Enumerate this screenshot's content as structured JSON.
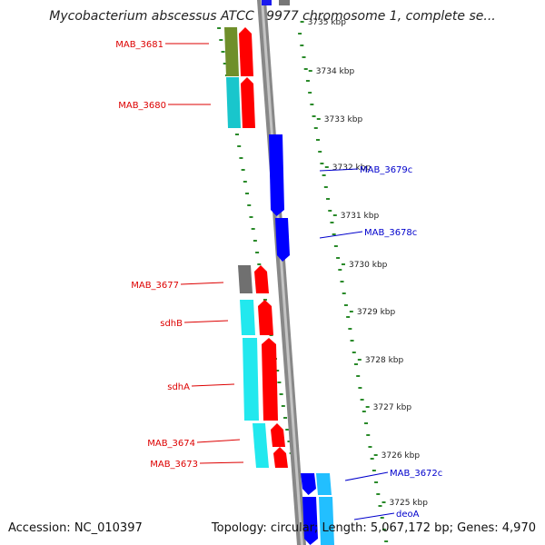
{
  "title": "Mycobacterium abscessus ATCC 19977 chromosome 1, complete se...",
  "accession": "Accession: NC_010397",
  "summary": "Topology: circular; Length: 5,067,172 bp; Genes: 4,970",
  "colors": {
    "label_forward": "#dd0000",
    "label_reverse": "#0000cc",
    "strand_forward": "#ff0000",
    "strand_reverse": "#0000ff",
    "backbone": "#888888",
    "ruler_dots": "#2a8a2a"
  },
  "ruler": [
    {
      "label": "3735 kbp"
    },
    {
      "label": "3734 kbp"
    },
    {
      "label": "3733 kbp"
    },
    {
      "label": "3732 kbp"
    },
    {
      "label": "3731 kbp"
    },
    {
      "label": "3730 kbp"
    },
    {
      "label": "3729 kbp"
    },
    {
      "label": "3728 kbp"
    },
    {
      "label": "3727 kbp"
    },
    {
      "label": "3726 kbp"
    },
    {
      "label": "3725 kbp"
    }
  ],
  "genes": [
    {
      "name": "MAB_3681",
      "strand": "forward",
      "cog_color": "#6f8f2a"
    },
    {
      "name": "MAB_3680",
      "strand": "forward",
      "cog_color": "#19c6cc"
    },
    {
      "name": "MAB_3679c",
      "strand": "reverse",
      "cog_color": "#1a1aee"
    },
    {
      "name": "MAB_3678c",
      "strand": "reverse",
      "cog_color": "#1a1aee"
    },
    {
      "name": "MAB_3677",
      "strand": "forward",
      "cog_color": "#707070"
    },
    {
      "name": "sdhB",
      "strand": "forward",
      "cog_color": "#22e8ee"
    },
    {
      "name": "sdhA",
      "strand": "forward",
      "cog_color": "#22e8ee"
    },
    {
      "name": "MAB_3674",
      "strand": "forward",
      "cog_color": "#22e8ee"
    },
    {
      "name": "MAB_3673",
      "strand": "forward",
      "cog_color": "#22e8ee"
    },
    {
      "name": "MAB_3672c",
      "strand": "reverse",
      "cog_color": "#22bfff"
    },
    {
      "name": "deoA",
      "strand": "reverse",
      "cog_color": "#22bfff"
    }
  ]
}
